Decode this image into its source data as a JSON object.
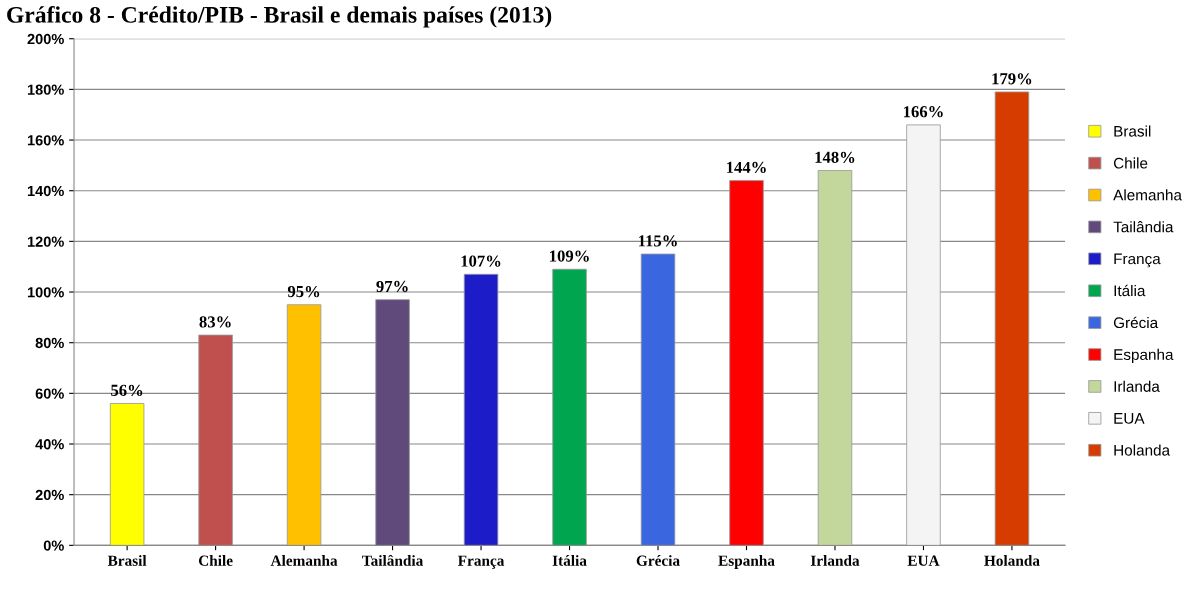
{
  "chart_data": {
    "type": "bar",
    "title": "Gráfico 8 - Crédito/PIB - Brasil e demais países (2013)",
    "categories": [
      "Brasil",
      "Chile",
      "Alemanha",
      "Tailândia",
      "França",
      "Itália",
      "Grécia",
      "Espanha",
      "Irlanda",
      "EUA",
      "Holanda"
    ],
    "series": [
      {
        "name": "Brasil",
        "color": "#ffff00",
        "values": [
          56,
          null,
          null,
          null,
          null,
          null,
          null,
          null,
          null,
          null,
          null
        ],
        "value_labels": [
          "56%",
          null,
          null,
          null,
          null,
          null,
          null,
          null,
          null,
          null,
          null
        ]
      },
      {
        "name": "Chile",
        "color": "#c0504d",
        "values": [
          null,
          83,
          null,
          null,
          null,
          null,
          null,
          null,
          null,
          null,
          null
        ],
        "value_labels": [
          null,
          "83%",
          null,
          null,
          null,
          null,
          null,
          null,
          null,
          null,
          null
        ]
      },
      {
        "name": "Alemanha",
        "color": "#ffc000",
        "values": [
          null,
          null,
          95,
          null,
          null,
          null,
          null,
          null,
          null,
          null,
          null
        ],
        "value_labels": [
          null,
          null,
          "95%",
          null,
          null,
          null,
          null,
          null,
          null,
          null,
          null
        ]
      },
      {
        "name": "Tailândia",
        "color": "#604a7b",
        "values": [
          null,
          null,
          null,
          97,
          null,
          null,
          null,
          null,
          null,
          null,
          null
        ],
        "value_labels": [
          null,
          null,
          null,
          "97%",
          null,
          null,
          null,
          null,
          null,
          null,
          null
        ]
      },
      {
        "name": "França",
        "color": "#1c1cc8",
        "values": [
          null,
          null,
          null,
          null,
          107,
          null,
          null,
          null,
          null,
          null,
          null
        ],
        "value_labels": [
          null,
          null,
          null,
          null,
          "107%",
          null,
          null,
          null,
          null,
          null,
          null
        ]
      },
      {
        "name": "Itália",
        "color": "#00a550",
        "values": [
          null,
          null,
          null,
          null,
          null,
          109,
          null,
          null,
          null,
          null,
          null
        ],
        "value_labels": [
          null,
          null,
          null,
          null,
          null,
          "109%",
          null,
          null,
          null,
          null,
          null
        ]
      },
      {
        "name": "Grécia",
        "color": "#3a66e0",
        "values": [
          null,
          null,
          null,
          null,
          null,
          null,
          115,
          null,
          null,
          null,
          null
        ],
        "value_labels": [
          null,
          null,
          null,
          null,
          null,
          null,
          "115%",
          null,
          null,
          null,
          null
        ]
      },
      {
        "name": "Espanha",
        "color": "#ff0000",
        "values": [
          null,
          null,
          null,
          null,
          null,
          null,
          null,
          144,
          null,
          null,
          null
        ],
        "value_labels": [
          null,
          null,
          null,
          null,
          null,
          null,
          null,
          "144%",
          null,
          null,
          null
        ]
      },
      {
        "name": "Irlanda",
        "color": "#c3d69b",
        "values": [
          null,
          null,
          null,
          null,
          null,
          null,
          null,
          null,
          148,
          null,
          null
        ],
        "value_labels": [
          null,
          null,
          null,
          null,
          null,
          null,
          null,
          null,
          "148%",
          null,
          null
        ]
      },
      {
        "name": "EUA",
        "color": "#f4f4f4",
        "values": [
          null,
          null,
          null,
          null,
          null,
          null,
          null,
          null,
          null,
          166,
          null
        ],
        "value_labels": [
          null,
          null,
          null,
          null,
          null,
          null,
          null,
          null,
          null,
          "166%",
          null
        ]
      },
      {
        "name": "Holanda",
        "color": "#d63c00",
        "values": [
          null,
          null,
          null,
          null,
          null,
          null,
          null,
          null,
          null,
          null,
          179
        ],
        "value_labels": [
          null,
          null,
          null,
          null,
          null,
          null,
          null,
          null,
          null,
          null,
          "179%"
        ]
      }
    ],
    "ylim": [
      0,
      200
    ],
    "yticks": [
      {
        "value": 0,
        "label": "0%"
      },
      {
        "value": 20,
        "label": "20%"
      },
      {
        "value": 40,
        "label": "40%"
      },
      {
        "value": 60,
        "label": "60%"
      },
      {
        "value": 80,
        "label": "80%"
      },
      {
        "value": 100,
        "label": "100%"
      },
      {
        "value": 120,
        "label": "120%"
      },
      {
        "value": 140,
        "label": "140%"
      },
      {
        "value": 160,
        "label": "160%"
      },
      {
        "value": 180,
        "label": "180%"
      },
      {
        "value": 200,
        "label": "200%"
      }
    ],
    "grid": "y",
    "legend": "right"
  }
}
